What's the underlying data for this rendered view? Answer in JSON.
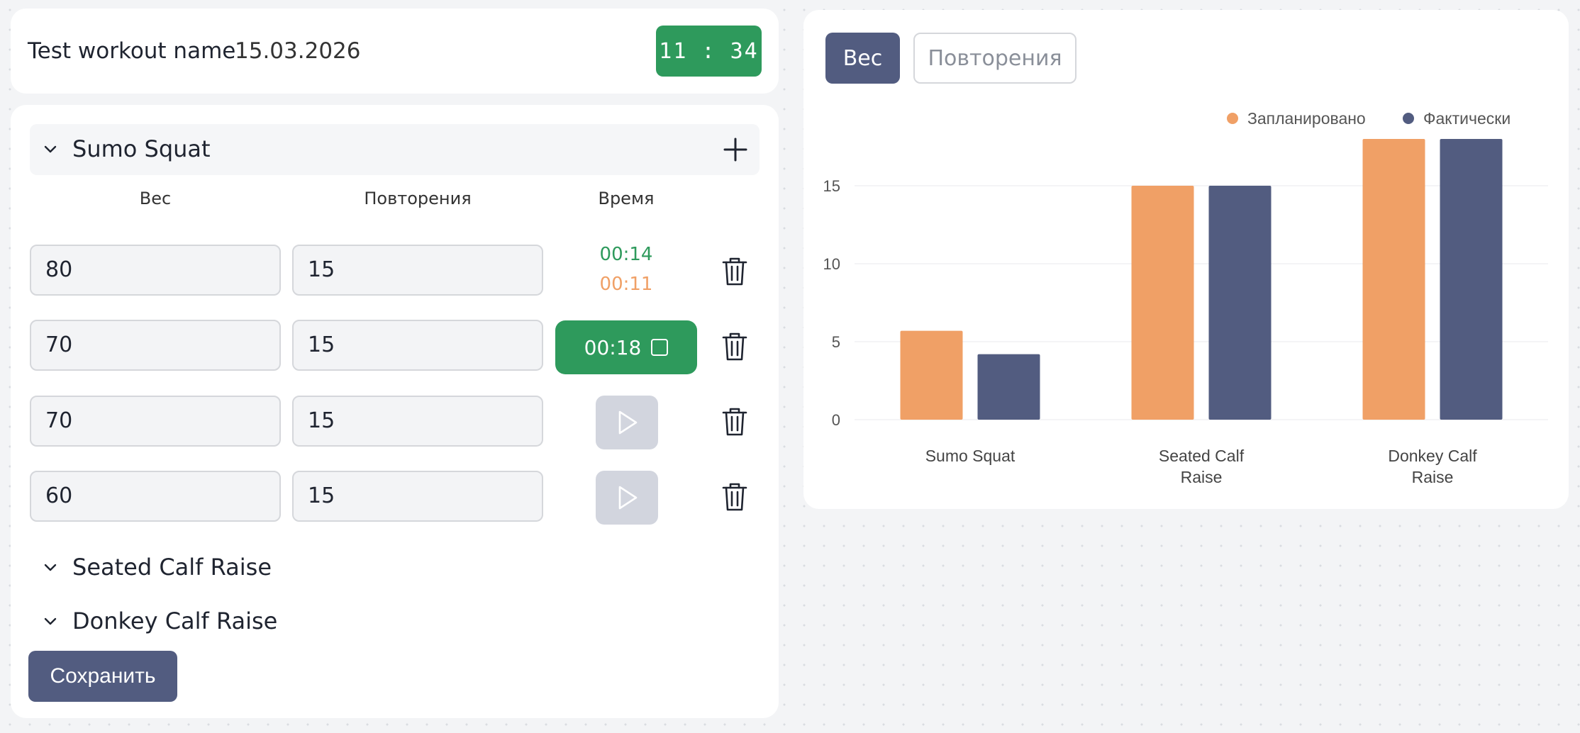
{
  "header": {
    "workout_name": "Test workout name",
    "date": "15.03.2026",
    "clock": "11 : 34"
  },
  "exercises": [
    {
      "name": "Sumo Squat",
      "expanded": true,
      "columns": {
        "weight": "Вес",
        "reps": "Повторения",
        "time": "Время"
      },
      "sets": [
        {
          "weight": "80",
          "reps": "15",
          "time_planned": "00:14",
          "time_actual": "00:11"
        },
        {
          "weight": "70",
          "reps": "15",
          "timer_running": "00:18"
        },
        {
          "weight": "70",
          "reps": "15"
        },
        {
          "weight": "60",
          "reps": "15"
        }
      ]
    },
    {
      "name": "Seated Calf Raise",
      "expanded": false
    },
    {
      "name": "Donkey Calf Raise",
      "expanded": false
    }
  ],
  "save_label": "Сохранить",
  "chart_tabs": {
    "active": "Вес",
    "inactive": "Повторения"
  },
  "colors": {
    "planned": "#f0a066",
    "actual": "#525c80",
    "green": "#2e9a5c"
  },
  "icons": [
    "chevron-down-icon",
    "plus-icon",
    "trash-icon",
    "play-icon",
    "stop-icon"
  ],
  "chart_data": {
    "type": "bar",
    "categories": [
      "Sumo Squat",
      "Seated Calf Raise",
      "Donkey Calf Raise"
    ],
    "category_lines": [
      [
        "Sumo Squat"
      ],
      [
        "Seated Calf",
        "Raise"
      ],
      [
        "Donkey Calf",
        "Raise"
      ]
    ],
    "series": [
      {
        "name": "Запланировано",
        "values": [
          5.7,
          15,
          18
        ]
      },
      {
        "name": "Фактически",
        "values": [
          4.2,
          15,
          18
        ]
      }
    ],
    "yticks": [
      0,
      5,
      10,
      15
    ],
    "ylim": [
      0,
      18
    ],
    "legend": "top-right",
    "grid": true
  }
}
